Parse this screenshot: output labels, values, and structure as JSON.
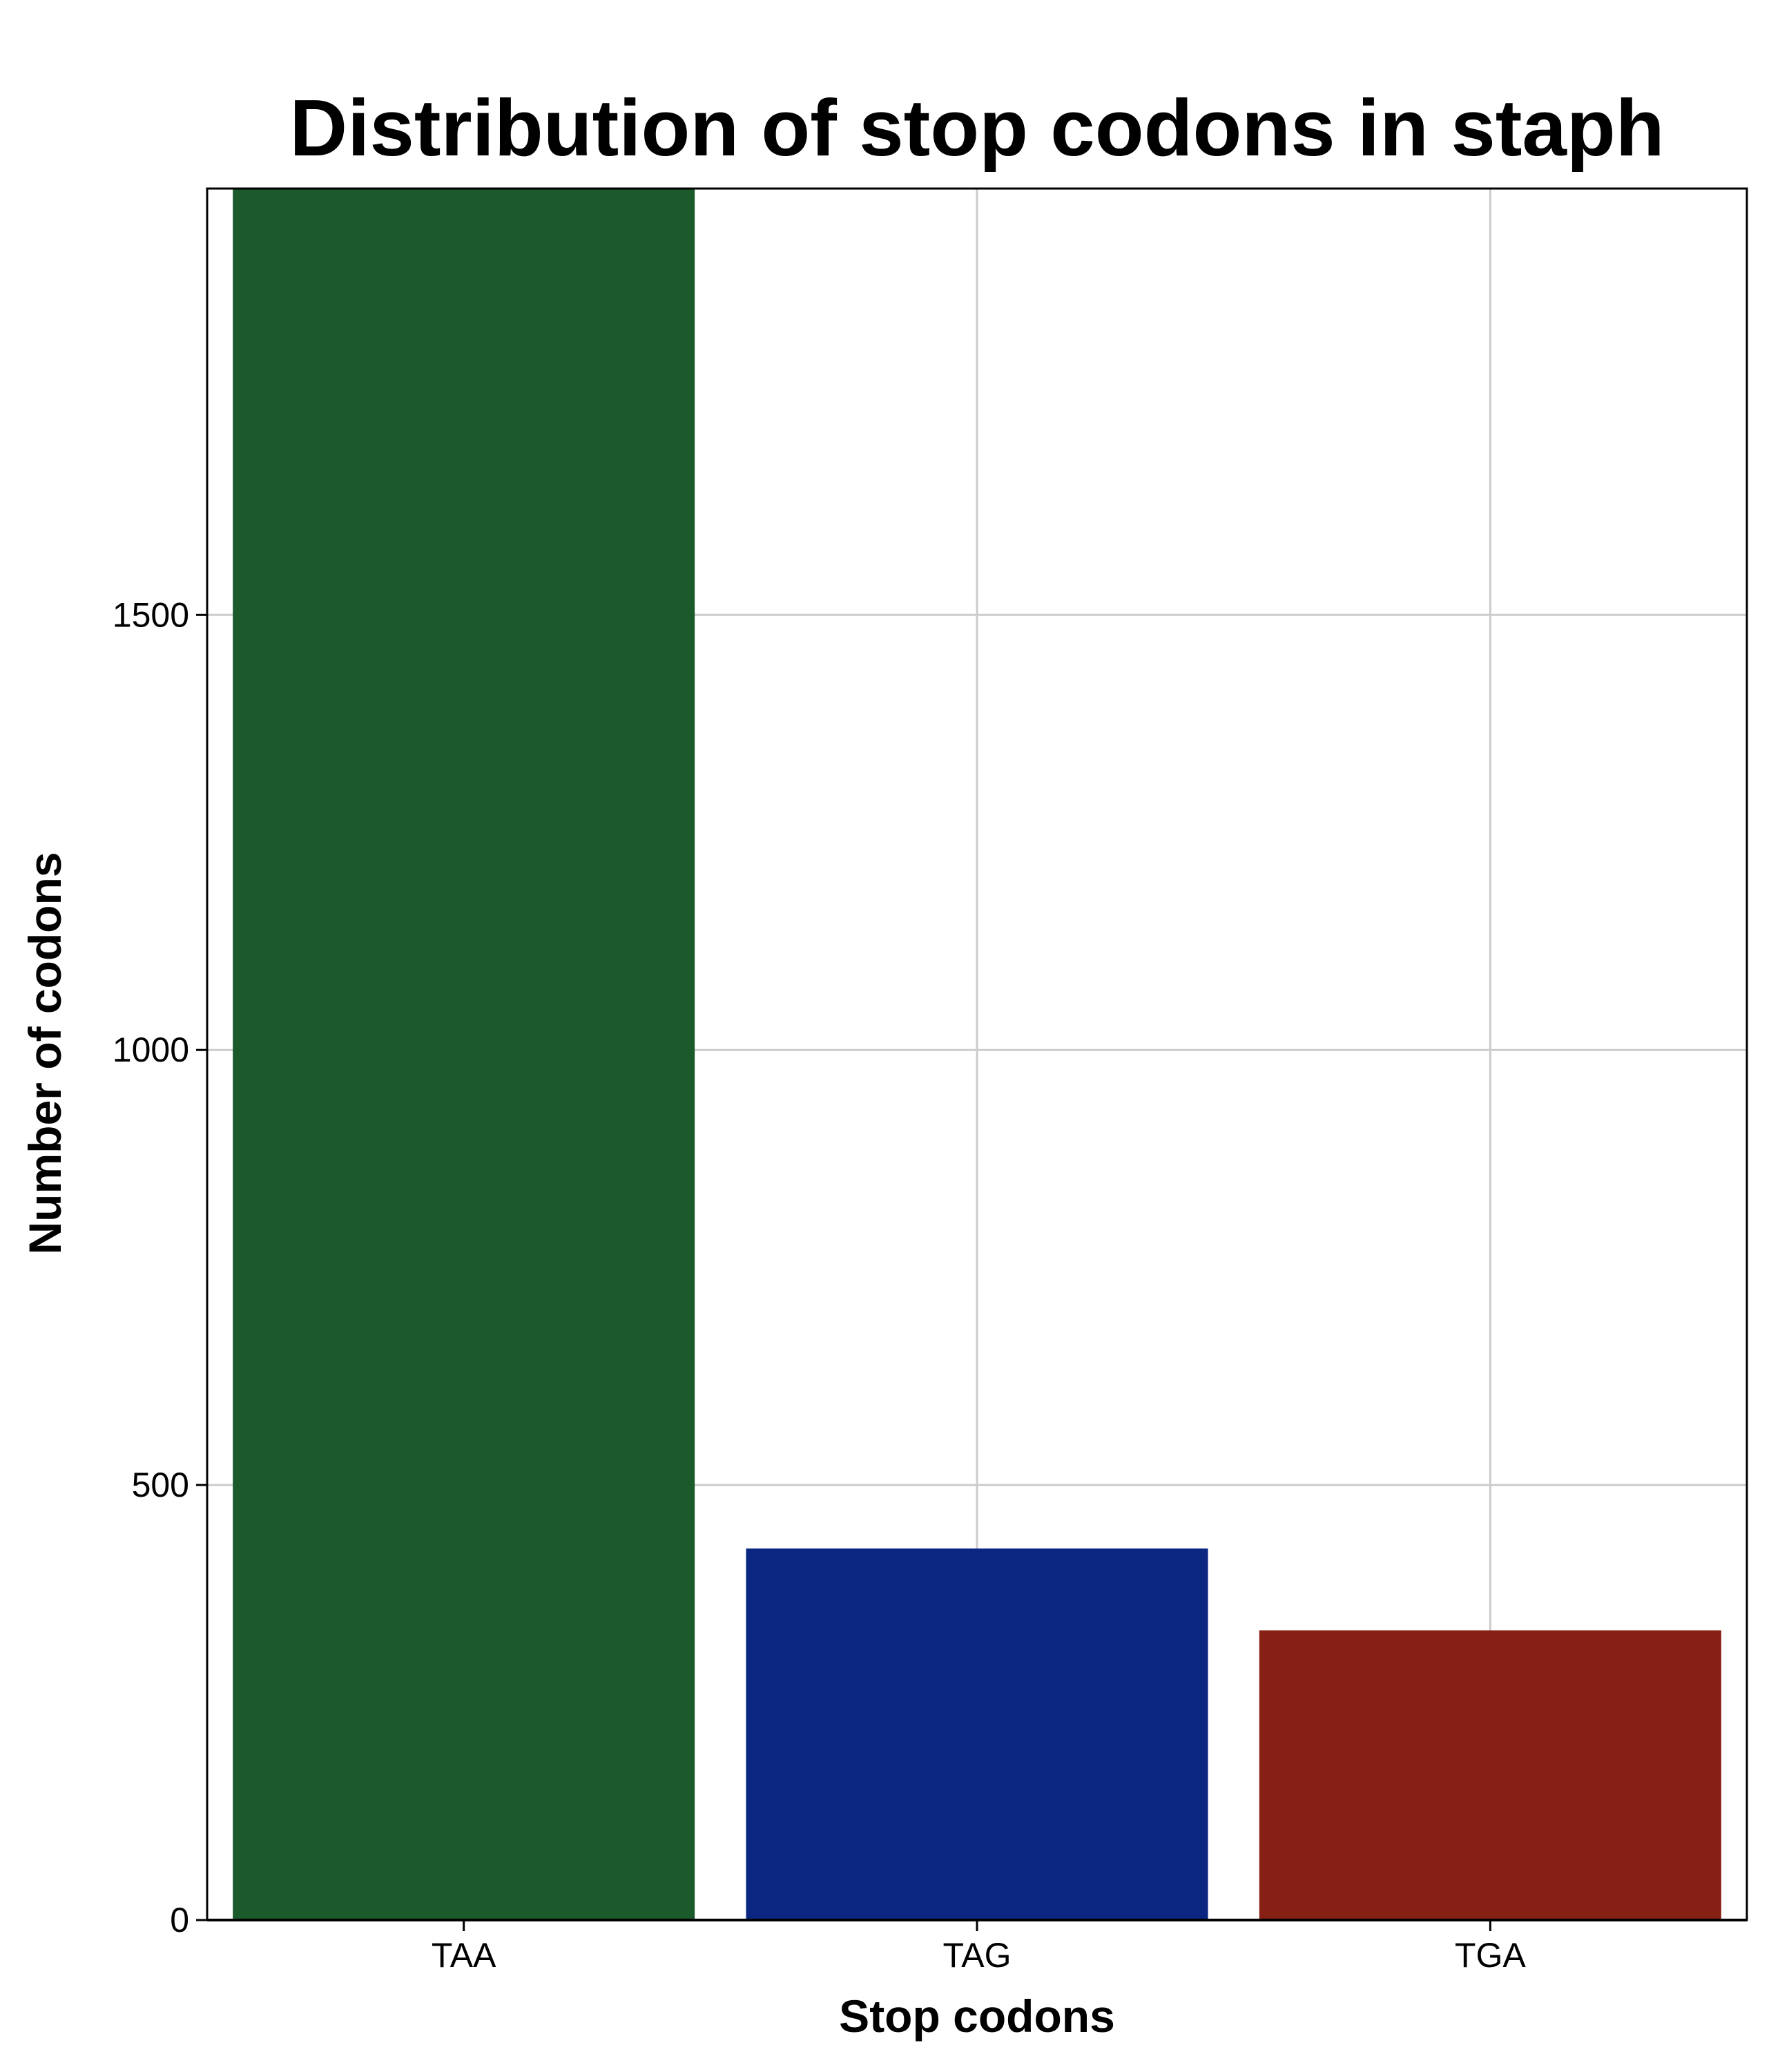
{
  "chart_data": {
    "type": "bar",
    "title": "Distribution of stop codons in staph",
    "xlabel": "Stop codons",
    "ylabel": "Number of codons",
    "categories": [
      "TAA",
      "TAG",
      "TGA"
    ],
    "values": [
      1990,
      427,
      333
    ],
    "colors": [
      "#1b5a2b",
      "#0b2680",
      "#861f14"
    ],
    "ylim": [
      0,
      1990
    ],
    "yticks": [
      0,
      500,
      1000,
      1500
    ],
    "ytick_labels": [
      "0",
      "500",
      "1000",
      "1500"
    ],
    "grid": true,
    "legend": "none"
  }
}
